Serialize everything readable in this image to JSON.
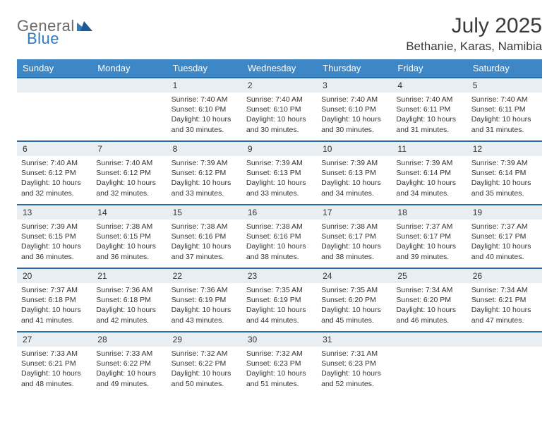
{
  "brand": {
    "word1": "General",
    "word2": "Blue",
    "word1_color": "#6a6a6a",
    "word2_color": "#2e7cc0",
    "triangle_color": "#2e7cc0"
  },
  "title": "July 2025",
  "location": "Bethanie, Karas, Namibia",
  "colors": {
    "header_bg": "#3d87c7",
    "header_text": "#ffffff",
    "daynum_bg": "#e9eef2",
    "week_border": "#2a6ba5",
    "text": "#333333",
    "page_bg": "#ffffff"
  },
  "day_headers": [
    "Sunday",
    "Monday",
    "Tuesday",
    "Wednesday",
    "Thursday",
    "Friday",
    "Saturday"
  ],
  "weeks": [
    [
      {
        "n": "",
        "sunrise": "",
        "sunset": "",
        "daylight": ""
      },
      {
        "n": "",
        "sunrise": "",
        "sunset": "",
        "daylight": ""
      },
      {
        "n": "1",
        "sunrise": "7:40 AM",
        "sunset": "6:10 PM",
        "daylight": "10 hours and 30 minutes."
      },
      {
        "n": "2",
        "sunrise": "7:40 AM",
        "sunset": "6:10 PM",
        "daylight": "10 hours and 30 minutes."
      },
      {
        "n": "3",
        "sunrise": "7:40 AM",
        "sunset": "6:10 PM",
        "daylight": "10 hours and 30 minutes."
      },
      {
        "n": "4",
        "sunrise": "7:40 AM",
        "sunset": "6:11 PM",
        "daylight": "10 hours and 31 minutes."
      },
      {
        "n": "5",
        "sunrise": "7:40 AM",
        "sunset": "6:11 PM",
        "daylight": "10 hours and 31 minutes."
      }
    ],
    [
      {
        "n": "6",
        "sunrise": "7:40 AM",
        "sunset": "6:12 PM",
        "daylight": "10 hours and 32 minutes."
      },
      {
        "n": "7",
        "sunrise": "7:40 AM",
        "sunset": "6:12 PM",
        "daylight": "10 hours and 32 minutes."
      },
      {
        "n": "8",
        "sunrise": "7:39 AM",
        "sunset": "6:12 PM",
        "daylight": "10 hours and 33 minutes."
      },
      {
        "n": "9",
        "sunrise": "7:39 AM",
        "sunset": "6:13 PM",
        "daylight": "10 hours and 33 minutes."
      },
      {
        "n": "10",
        "sunrise": "7:39 AM",
        "sunset": "6:13 PM",
        "daylight": "10 hours and 34 minutes."
      },
      {
        "n": "11",
        "sunrise": "7:39 AM",
        "sunset": "6:14 PM",
        "daylight": "10 hours and 34 minutes."
      },
      {
        "n": "12",
        "sunrise": "7:39 AM",
        "sunset": "6:14 PM",
        "daylight": "10 hours and 35 minutes."
      }
    ],
    [
      {
        "n": "13",
        "sunrise": "7:39 AM",
        "sunset": "6:15 PM",
        "daylight": "10 hours and 36 minutes."
      },
      {
        "n": "14",
        "sunrise": "7:38 AM",
        "sunset": "6:15 PM",
        "daylight": "10 hours and 36 minutes."
      },
      {
        "n": "15",
        "sunrise": "7:38 AM",
        "sunset": "6:16 PM",
        "daylight": "10 hours and 37 minutes."
      },
      {
        "n": "16",
        "sunrise": "7:38 AM",
        "sunset": "6:16 PM",
        "daylight": "10 hours and 38 minutes."
      },
      {
        "n": "17",
        "sunrise": "7:38 AM",
        "sunset": "6:17 PM",
        "daylight": "10 hours and 38 minutes."
      },
      {
        "n": "18",
        "sunrise": "7:37 AM",
        "sunset": "6:17 PM",
        "daylight": "10 hours and 39 minutes."
      },
      {
        "n": "19",
        "sunrise": "7:37 AM",
        "sunset": "6:17 PM",
        "daylight": "10 hours and 40 minutes."
      }
    ],
    [
      {
        "n": "20",
        "sunrise": "7:37 AM",
        "sunset": "6:18 PM",
        "daylight": "10 hours and 41 minutes."
      },
      {
        "n": "21",
        "sunrise": "7:36 AM",
        "sunset": "6:18 PM",
        "daylight": "10 hours and 42 minutes."
      },
      {
        "n": "22",
        "sunrise": "7:36 AM",
        "sunset": "6:19 PM",
        "daylight": "10 hours and 43 minutes."
      },
      {
        "n": "23",
        "sunrise": "7:35 AM",
        "sunset": "6:19 PM",
        "daylight": "10 hours and 44 minutes."
      },
      {
        "n": "24",
        "sunrise": "7:35 AM",
        "sunset": "6:20 PM",
        "daylight": "10 hours and 45 minutes."
      },
      {
        "n": "25",
        "sunrise": "7:34 AM",
        "sunset": "6:20 PM",
        "daylight": "10 hours and 46 minutes."
      },
      {
        "n": "26",
        "sunrise": "7:34 AM",
        "sunset": "6:21 PM",
        "daylight": "10 hours and 47 minutes."
      }
    ],
    [
      {
        "n": "27",
        "sunrise": "7:33 AM",
        "sunset": "6:21 PM",
        "daylight": "10 hours and 48 minutes."
      },
      {
        "n": "28",
        "sunrise": "7:33 AM",
        "sunset": "6:22 PM",
        "daylight": "10 hours and 49 minutes."
      },
      {
        "n": "29",
        "sunrise": "7:32 AM",
        "sunset": "6:22 PM",
        "daylight": "10 hours and 50 minutes."
      },
      {
        "n": "30",
        "sunrise": "7:32 AM",
        "sunset": "6:23 PM",
        "daylight": "10 hours and 51 minutes."
      },
      {
        "n": "31",
        "sunrise": "7:31 AM",
        "sunset": "6:23 PM",
        "daylight": "10 hours and 52 minutes."
      },
      {
        "n": "",
        "sunrise": "",
        "sunset": "",
        "daylight": ""
      },
      {
        "n": "",
        "sunrise": "",
        "sunset": "",
        "daylight": ""
      }
    ]
  ],
  "labels": {
    "sunrise": "Sunrise:",
    "sunset": "Sunset:",
    "daylight": "Daylight:"
  }
}
